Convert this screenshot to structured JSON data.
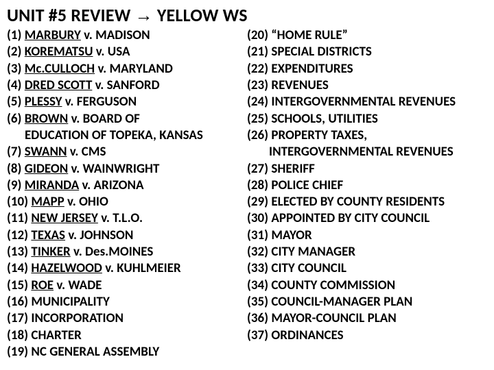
{
  "title_part1": "UNIT #5 REVIEW ",
  "title_arrow": "→",
  "title_part2": " YELLOW WS",
  "col1": [
    {
      "n": "(1) ",
      "u": "MARBURY",
      "r": " v. MADISON"
    },
    {
      "n": "(2) ",
      "u": "KOREMATSU",
      "r": " v. USA"
    },
    {
      "n": "(3) ",
      "u": "Mc.CULLOCH",
      "r": " v. MARYLAND"
    },
    {
      "n": "(4) ",
      "u": "DRED SCOTT",
      "r": " v. SANFORD"
    },
    {
      "n": "(5) ",
      "u": "PLESSY",
      "r": " v. FERGUSON"
    },
    {
      "n": "(6) ",
      "u": "BROWN",
      "r": " v. BOARD OF",
      "cont": "EDUCATION OF TOPEKA, KANSAS"
    },
    {
      "n": "(7) ",
      "u": "SWANN",
      "r": " v. CMS"
    },
    {
      "n": "(8) ",
      "u": "GIDEON",
      "r": " v. WAINWRIGHT"
    },
    {
      "n": "(9) ",
      "u": "MIRANDA",
      "r": " v. ARIZONA"
    },
    {
      "n": "(10) ",
      "u": "MAPP",
      "r": " v. OHIO"
    },
    {
      "n": "(11) ",
      "u": "NEW JERSEY",
      "r": " v. T.L.O."
    },
    {
      "n": "(12) ",
      "u": "TEXAS",
      "r": " v. JOHNSON"
    },
    {
      "n": "(13) ",
      "u": "TINKER",
      "r": " v. Des.MOINES"
    },
    {
      "n": "(14) ",
      "u": "HAZELWOOD",
      "r": " v. KUHLMEIER"
    },
    {
      "n": "(15) ",
      "u": "ROE",
      "r": " v. WADE"
    },
    {
      "n": "(16) MUNICIPALITY"
    },
    {
      "n": "(17) INCORPORATION"
    },
    {
      "n": "(18) CHARTER"
    },
    {
      "n": "(19) NC GENERAL ASSEMBLY"
    }
  ],
  "col2": [
    {
      "t": "(20) “HOME RULE”"
    },
    {
      "t": "(21) SPECIAL DISTRICTS"
    },
    {
      "t": "(22) EXPENDITURES"
    },
    {
      "t": "(23) REVENUES"
    },
    {
      "t": "(24) INTERGOVERNMENTAL REVENUES"
    },
    {
      "t": "(25) SCHOOLS, UTILITIES"
    },
    {
      "t": "(26) PROPERTY TAXES,",
      "cont": "INTERGOVERNMENTAL REVENUES"
    },
    {
      "t": "(27) SHERIFF"
    },
    {
      "t": "(28) POLICE CHIEF"
    },
    {
      "t": "(29) ELECTED BY COUNTY RESIDENTS"
    },
    {
      "t": "(30) APPOINTED BY CITY COUNCIL"
    },
    {
      "t": "(31) MAYOR"
    },
    {
      "t": "(32) CITY MANAGER"
    },
    {
      "t": "(33) CITY COUNCIL"
    },
    {
      "t": "(34) COUNTY COMMISSION"
    },
    {
      "t": "(35) COUNCIL-MANAGER PLAN"
    },
    {
      "t": "(36) MAYOR-COUNCIL PLAN"
    },
    {
      "t": "(37) ORDINANCES"
    }
  ]
}
